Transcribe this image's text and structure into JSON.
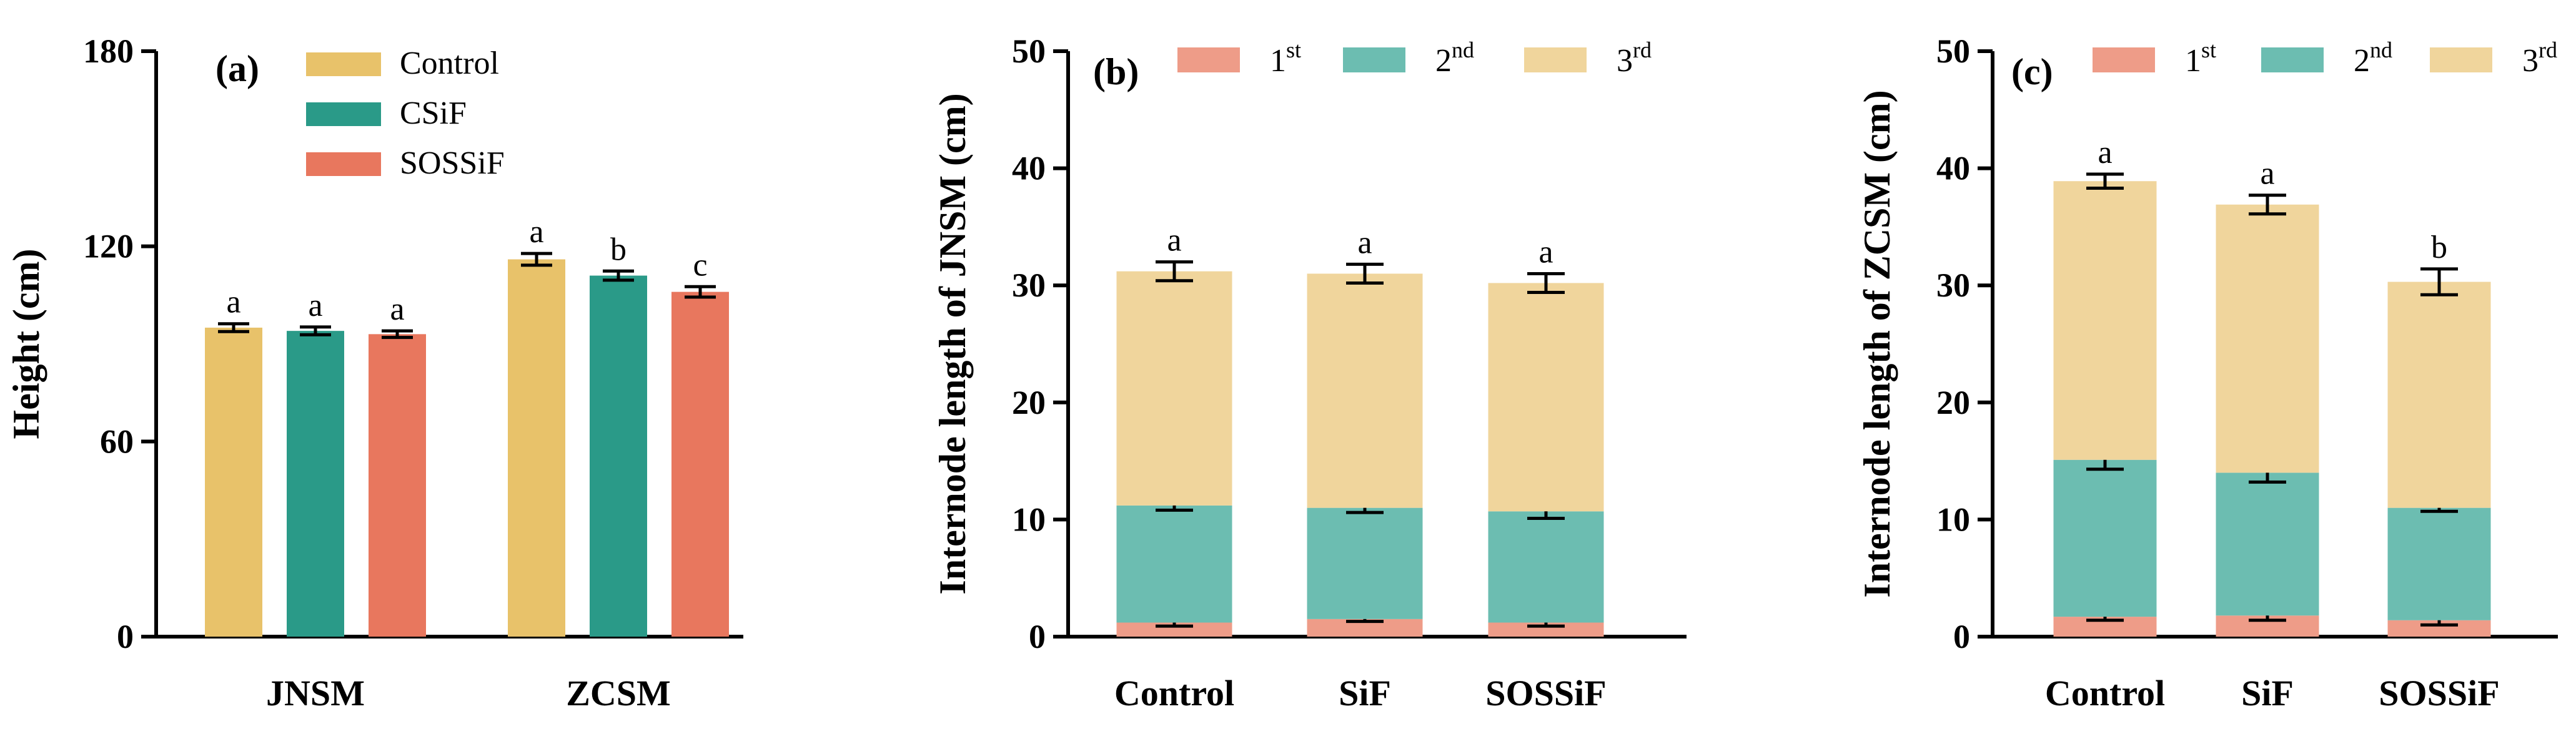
{
  "chart_data": [
    {
      "panel": "(a)",
      "type": "bar",
      "ylabel": "Height (cm)",
      "ylim": [
        0,
        180
      ],
      "yticks": [
        "0",
        "60",
        "120",
        "180"
      ],
      "categories": [
        "JNSM",
        "ZCSM"
      ],
      "legend_position": "top-center",
      "series": [
        {
          "name": "Control",
          "color": "#E8C26A",
          "values": [
            95,
            116
          ],
          "errors": [
            1.2,
            1.8
          ],
          "letters": [
            "a",
            "a"
          ]
        },
        {
          "name": "CSiF",
          "color": "#2A9A88",
          "values": [
            94,
            111
          ],
          "errors": [
            1.2,
            1.4
          ],
          "letters": [
            "a",
            "b"
          ]
        },
        {
          "name": "SOSSiF",
          "color": "#E8775E",
          "values": [
            93,
            106
          ],
          "errors": [
            1.0,
            1.6
          ],
          "letters": [
            "a",
            "c"
          ]
        }
      ]
    },
    {
      "panel": "(b)",
      "type": "stacked-bar",
      "ylabel": "Internode length of JNSM (cm)",
      "ylim": [
        0,
        50
      ],
      "yticks": [
        "0",
        "10",
        "20",
        "30",
        "40",
        "50"
      ],
      "categories": [
        "Control",
        "SiF",
        "SOSSiF"
      ],
      "legend_position": "top",
      "series": [
        {
          "name": "1",
          "sup": "st",
          "color": "#EE9C88",
          "values": [
            1.2,
            1.5,
            1.2
          ],
          "errors": [
            0.3,
            0.2,
            0.3
          ],
          "letters": [
            "a",
            "a",
            "a"
          ]
        },
        {
          "name": "2",
          "sup": "nd",
          "color": "#6CBDB1",
          "values": [
            10.0,
            9.5,
            9.5
          ],
          "errors": [
            0.4,
            0.4,
            0.6
          ],
          "letters": [
            "a",
            "a",
            "a"
          ]
        },
        {
          "name": "3",
          "sup": "rd",
          "color": "#F0D59C",
          "values": [
            20.0,
            20.0,
            19.5
          ],
          "errors": [
            0.8,
            0.8,
            0.8
          ],
          "letters": [
            "a",
            "a",
            "a"
          ]
        }
      ]
    },
    {
      "panel": "(c)",
      "type": "stacked-bar",
      "ylabel": "Internode length of ZCSM (cm)",
      "ylim": [
        0,
        50
      ],
      "yticks": [
        "0",
        "10",
        "20",
        "30",
        "40",
        "50"
      ],
      "categories": [
        "Control",
        "SiF",
        "SOSSiF"
      ],
      "legend_position": "top",
      "series": [
        {
          "name": "1",
          "sup": "st",
          "color": "#EE9C88",
          "values": [
            1.7,
            1.8,
            1.4
          ],
          "errors": [
            0.3,
            0.4,
            0.4
          ],
          "letters": [
            "a",
            "a",
            "a"
          ]
        },
        {
          "name": "2",
          "sup": "nd",
          "color": "#6CBDB1",
          "values": [
            13.4,
            12.2,
            9.6
          ],
          "errors": [
            0.8,
            0.8,
            0.3
          ],
          "letters": [
            "a",
            "a",
            "b"
          ]
        },
        {
          "name": "3",
          "sup": "rd",
          "color": "#F0D59C",
          "values": [
            23.8,
            22.9,
            19.3
          ],
          "errors": [
            0.6,
            0.8,
            1.1
          ],
          "letters": [
            "a",
            "a",
            "b"
          ]
        }
      ]
    }
  ]
}
